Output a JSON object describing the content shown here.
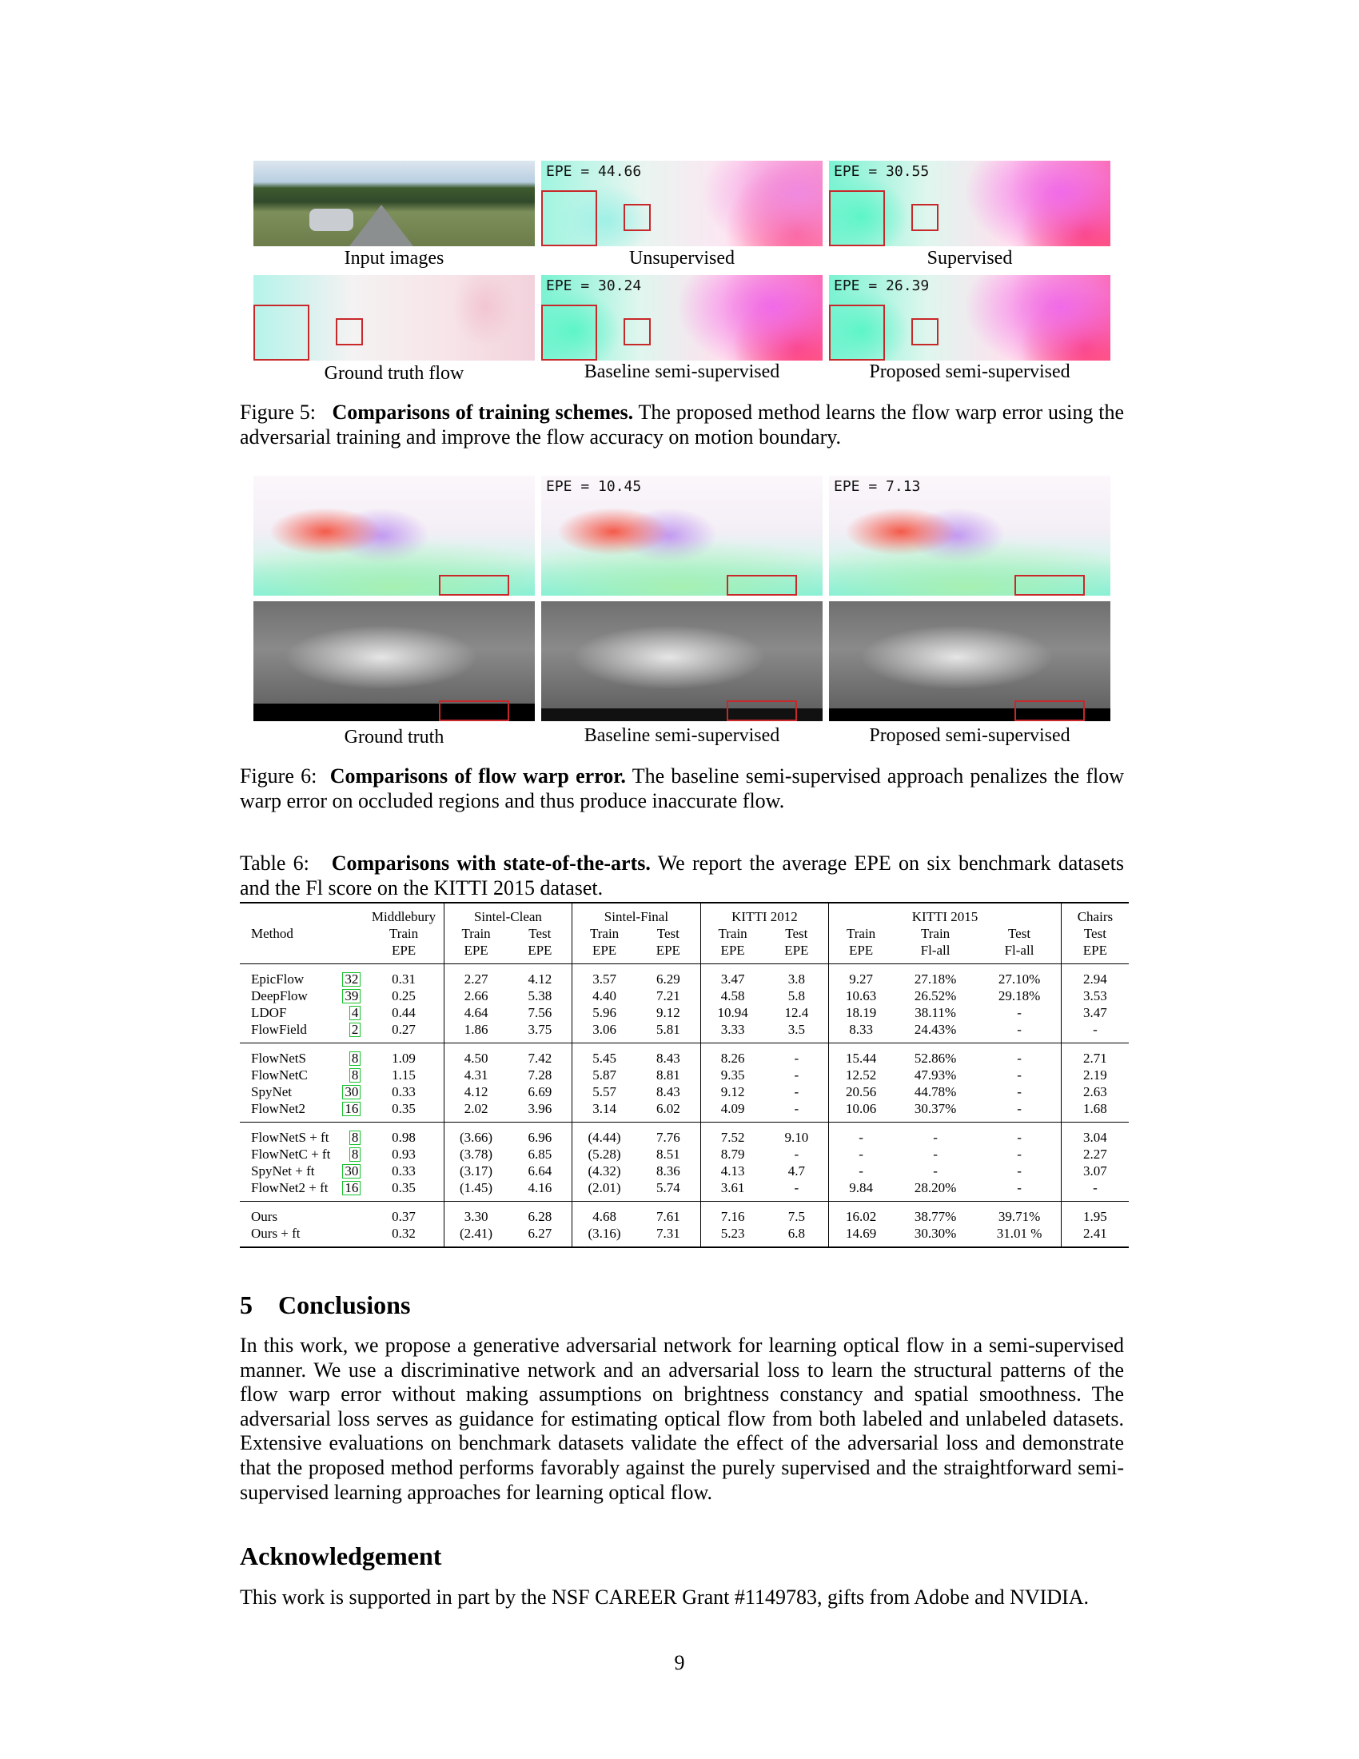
{
  "fig5": {
    "panels": {
      "input": {
        "caption": "Input images"
      },
      "unsup": {
        "epe": "EPE = 44.66",
        "caption": "Unsupervised"
      },
      "sup": {
        "epe": "EPE = 30.55",
        "caption": "Supervised"
      },
      "gt": {
        "caption": "Ground truth flow"
      },
      "baseline": {
        "epe": "EPE = 30.24",
        "caption": "Baseline semi-supervised"
      },
      "proposed": {
        "epe": "EPE = 26.39",
        "caption": "Proposed semi-supervised"
      }
    },
    "label": "Figure 5:",
    "title": "Comparisons of training schemes.",
    "text": "The proposed method learns the flow warp error using the adversarial training and improve the flow accuracy on motion boundary."
  },
  "fig6": {
    "panels": {
      "gt": {
        "caption": "Ground truth"
      },
      "baseline": {
        "epe": "EPE = 10.45",
        "caption": "Baseline semi-supervised"
      },
      "proposed": {
        "epe": "EPE = 7.13",
        "caption": "Proposed semi-supervised"
      }
    },
    "label": "Figure 6:",
    "title": "Comparisons of flow warp error.",
    "text": "The baseline semi-supervised approach penalizes the flow warp error on occluded regions and thus produce inaccurate flow."
  },
  "table6": {
    "label": "Table 6:",
    "title": "Comparisons with state-of-the-arts.",
    "text": "We report the average EPE on six benchmark datasets and the Fl score on the KITTI 2015 dataset.",
    "groups": [
      "Middlebury",
      "Sintel-Clean",
      "Sintel-Final",
      "KITTI 2012",
      "KITTI 2015",
      "Chairs"
    ],
    "method_header": "Method",
    "subheaders": [
      "Train",
      "Train",
      "Test",
      "Train",
      "Test",
      "Train",
      "Test",
      "Train",
      "Train",
      "Test",
      "Test"
    ],
    "metrics": [
      "EPE",
      "EPE",
      "EPE",
      "EPE",
      "EPE",
      "EPE",
      "EPE",
      "EPE",
      "Fl-all",
      "Fl-all",
      "EPE"
    ],
    "blocks": [
      [
        {
          "method": "EpicFlow",
          "cite": "32",
          "v": [
            "0.31",
            "2.27",
            "4.12",
            "3.57",
            "6.29",
            "3.47",
            "3.8",
            "9.27",
            "27.18%",
            "27.10%",
            "2.94"
          ]
        },
        {
          "method": "DeepFlow",
          "cite": "39",
          "v": [
            "0.25",
            "2.66",
            "5.38",
            "4.40",
            "7.21",
            "4.58",
            "5.8",
            "10.63",
            "26.52%",
            "29.18%",
            "3.53"
          ]
        },
        {
          "method": "LDOF",
          "cite": "4",
          "v": [
            "0.44",
            "4.64",
            "7.56",
            "5.96",
            "9.12",
            "10.94",
            "12.4",
            "18.19",
            "38.11%",
            "-",
            "3.47"
          ]
        },
        {
          "method": "FlowField",
          "cite": "2",
          "v": [
            "0.27",
            "1.86",
            "3.75",
            "3.06",
            "5.81",
            "3.33",
            "3.5",
            "8.33",
            "24.43%",
            "-",
            "-"
          ]
        }
      ],
      [
        {
          "method": "FlowNetS",
          "cite": "8",
          "v": [
            "1.09",
            "4.50",
            "7.42",
            "5.45",
            "8.43",
            "8.26",
            "-",
            "15.44",
            "52.86%",
            "-",
            "2.71"
          ]
        },
        {
          "method": "FlowNetC",
          "cite": "8",
          "v": [
            "1.15",
            "4.31",
            "7.28",
            "5.87",
            "8.81",
            "9.35",
            "-",
            "12.52",
            "47.93%",
            "-",
            "2.19"
          ]
        },
        {
          "method": "SpyNet",
          "cite": "30",
          "v": [
            "0.33",
            "4.12",
            "6.69",
            "5.57",
            "8.43",
            "9.12",
            "-",
            "20.56",
            "44.78%",
            "-",
            "2.63"
          ]
        },
        {
          "method": "FlowNet2",
          "cite": "16",
          "v": [
            "0.35",
            "2.02",
            "3.96",
            "3.14",
            "6.02",
            "4.09",
            "-",
            "10.06",
            "30.37%",
            "-",
            "1.68"
          ]
        }
      ],
      [
        {
          "method": "FlowNetS + ft",
          "cite": "8",
          "v": [
            "0.98",
            "(3.66)",
            "6.96",
            "(4.44)",
            "7.76",
            "7.52",
            "9.10",
            "-",
            "-",
            "-",
            "3.04"
          ]
        },
        {
          "method": "FlowNetC + ft",
          "cite": "8",
          "v": [
            "0.93",
            "(3.78)",
            "6.85",
            "(5.28)",
            "8.51",
            "8.79",
            "-",
            "-",
            "-",
            "-",
            "2.27"
          ]
        },
        {
          "method": "SpyNet + ft",
          "cite": "30",
          "v": [
            "0.33",
            "(3.17)",
            "6.64",
            "(4.32)",
            "8.36",
            "4.13",
            "4.7",
            "-",
            "-",
            "-",
            "3.07"
          ]
        },
        {
          "method": "FlowNet2 + ft",
          "cite": "16",
          "v": [
            "0.35",
            "(1.45)",
            "4.16",
            "(2.01)",
            "5.74",
            "3.61",
            "-",
            "9.84",
            "28.20%",
            "-",
            "-"
          ]
        }
      ],
      [
        {
          "method": "Ours",
          "cite": "",
          "v": [
            "0.37",
            "3.30",
            "6.28",
            "4.68",
            "7.61",
            "7.16",
            "7.5",
            "16.02",
            "38.77%",
            "39.71%",
            "1.95"
          ]
        },
        {
          "method": "Ours + ft",
          "cite": "",
          "v": [
            "0.32",
            "(2.41)",
            "6.27",
            "(3.16)",
            "7.31",
            "5.23",
            "6.8",
            "14.69",
            "30.30%",
            "31.01 %",
            "2.41"
          ]
        }
      ]
    ]
  },
  "conclusions": {
    "number": "5",
    "heading": "Conclusions",
    "body": "In this work, we propose a generative adversarial network for learning optical flow in a semi-supervised manner. We use a discriminative network and an adversarial loss to learn the structural patterns of the flow warp error without making assumptions on brightness constancy and spatial smoothness. The adversarial loss serves as guidance for estimating optical flow from both labeled and unlabeled datasets. Extensive evaluations on benchmark datasets validate the effect of the adversarial loss and demonstrate that the proposed method performs favorably against the purely supervised and the straightforward semi-supervised learning approaches for learning optical flow."
  },
  "acknowledgement": {
    "heading": "Acknowledgement",
    "body": "This work is supported in part by the NSF CAREER Grant #1149783, gifts from Adobe and NVIDIA."
  },
  "page_number": "9"
}
